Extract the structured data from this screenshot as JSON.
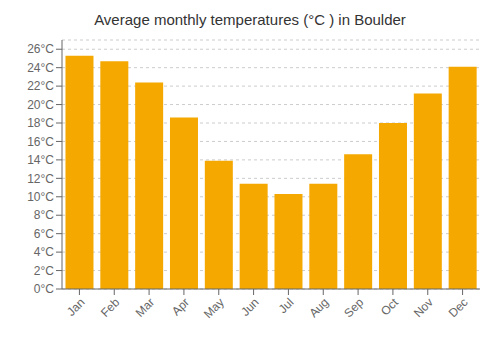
{
  "chart_data": {
    "type": "bar",
    "title": "Average monthly temperatures (°C ) in Boulder",
    "categories": [
      "Jan",
      "Feb",
      "Mar",
      "Apr",
      "May",
      "Jun",
      "Jul",
      "Aug",
      "Sep",
      "Oct",
      "Nov",
      "Dec"
    ],
    "values": [
      25.3,
      24.7,
      22.4,
      18.6,
      13.9,
      11.4,
      10.3,
      11.4,
      14.6,
      18.0,
      21.2,
      24.1
    ],
    "color": "#F5A800",
    "ylim": [
      0,
      27
    ],
    "yticks": [
      {
        "value": 0,
        "label": "0°C"
      },
      {
        "value": 2,
        "label": "2°C"
      },
      {
        "value": 4,
        "label": "4°C"
      },
      {
        "value": 6,
        "label": "6°C"
      },
      {
        "value": 8,
        "label": "8°C"
      },
      {
        "value": 10,
        "label": "10°C"
      },
      {
        "value": 12,
        "label": "12°C"
      },
      {
        "value": 14,
        "label": "14°C"
      },
      {
        "value": 16,
        "label": "16°C"
      },
      {
        "value": 18,
        "label": "18°C"
      },
      {
        "value": 20,
        "label": "20°C"
      },
      {
        "value": 22,
        "label": "22°C"
      },
      {
        "value": 24,
        "label": "24°C"
      },
      {
        "value": 26,
        "label": "26°C"
      }
    ],
    "grid": true
  }
}
